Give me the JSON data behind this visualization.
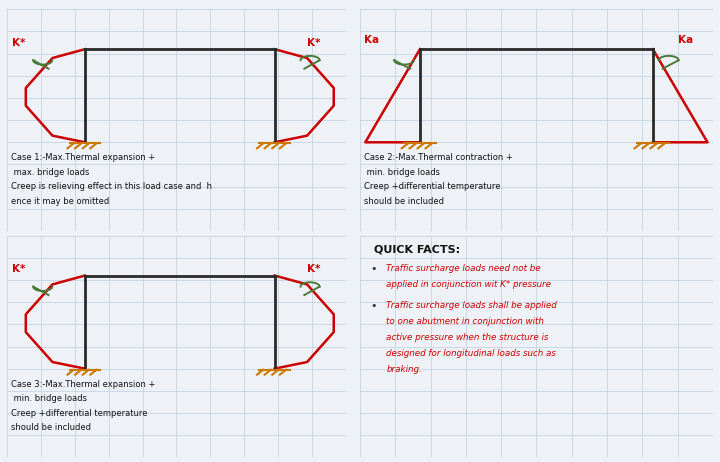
{
  "bg_color": "#eef2f7",
  "grid_color": "#c5d5e5",
  "wall_color": "#2a2a2a",
  "pressure_color": "#cc0000",
  "ground_color": "#cc7700",
  "label_color": "#cc0000",
  "spring_color": "#4a7a3a",
  "case1_text_lines": [
    "Case 1:-Max.Thermal expansion +",
    " max. bridge loads",
    "Creep is relieving effect in this load case and  h",
    "ence it may be omitted"
  ],
  "case2_text_lines": [
    "Case 2:-Max.Thermal contraction +",
    " min. bridge loads",
    "Creep +differential temperature",
    "should be included"
  ],
  "case3_text_lines": [
    "Case 3:-Max.Thermal expansion +",
    " min. bridge loads",
    "Creep +differential temperature",
    "should be included"
  ],
  "quickfacts_title": "QUICK FACTS:",
  "bullet1_lines": [
    "Traffic surcharge loads need not be",
    "applied in conjunction wit K* pressure"
  ],
  "bullet2_lines": [
    "Traffic surcharge loads shall be applied",
    "to one abutment in conjunction with",
    "active pressure when the structure is",
    "designed for longitudinal loads such as",
    "braking."
  ]
}
